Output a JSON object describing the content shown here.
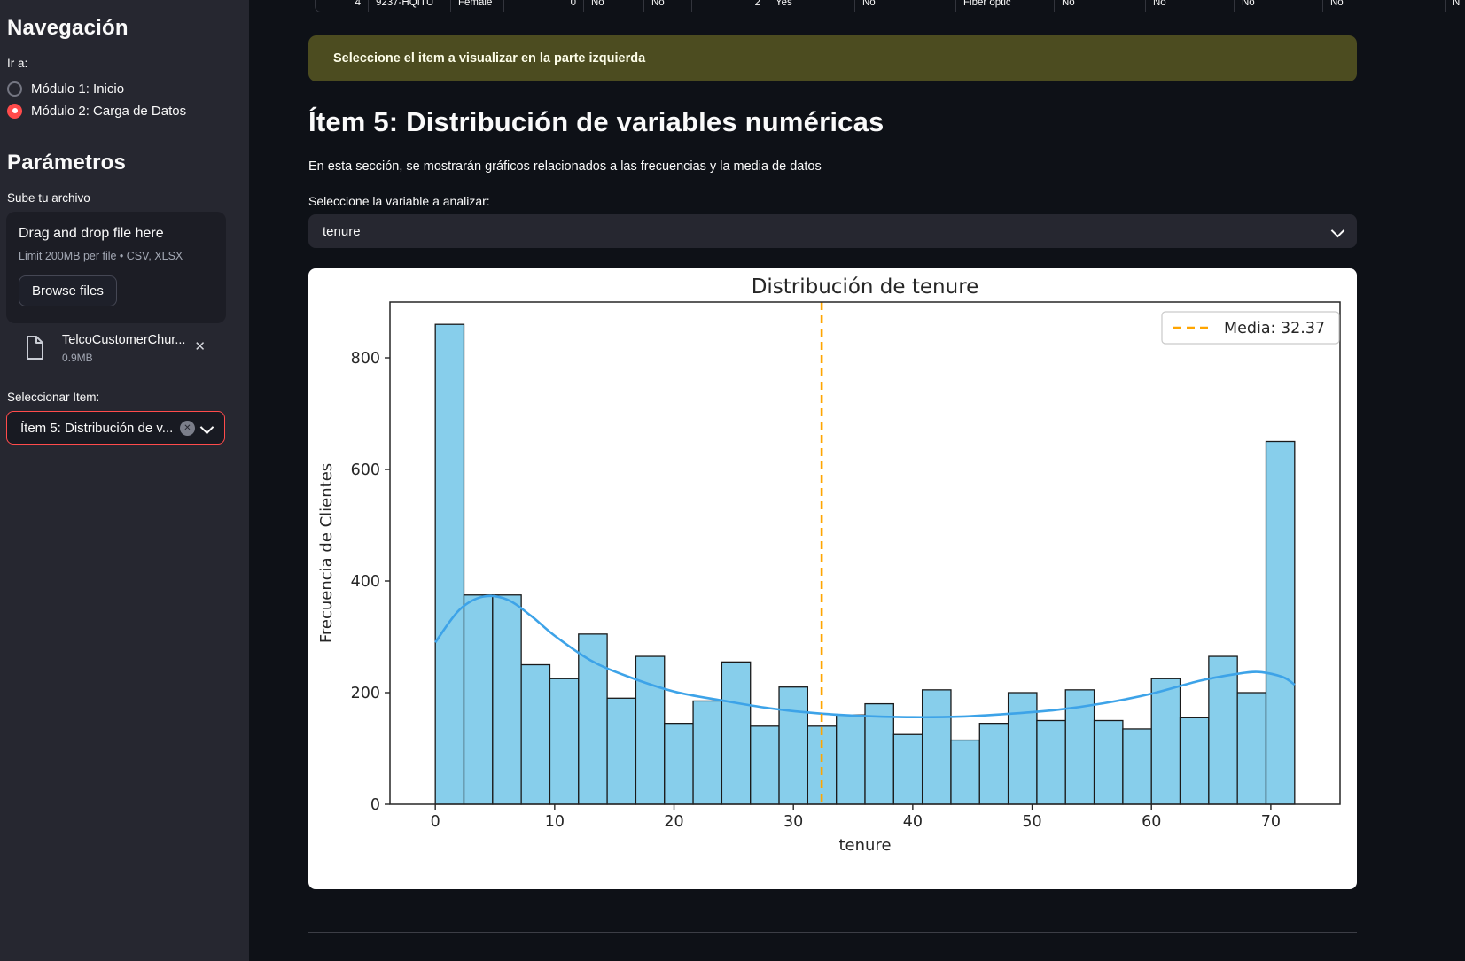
{
  "colors": {
    "bg": "#0e1117",
    "sidebar_bg": "#262730",
    "accent": "#ff4b4b",
    "text": "#fafafa",
    "muted": "#a3a8b4",
    "banner_bg": "#4c4c20",
    "banner_text": "#fdfde8"
  },
  "table_fragment": {
    "cells": [
      "4",
      "9237-HQITU",
      "Female",
      "0",
      "No",
      "No",
      "2",
      "Yes",
      "No",
      "Fiber optic",
      "No",
      "No",
      "No",
      "No",
      "N"
    ]
  },
  "banner": {
    "text": "Seleccione el item a visualizar en la parte izquierda"
  },
  "sidebar": {
    "nav_title": "Navegación",
    "goto_label": "Ir a:",
    "radios": [
      {
        "label": "Módulo 1: Inicio",
        "selected": false
      },
      {
        "label": "Módulo 2: Carga de Datos",
        "selected": true
      }
    ],
    "params_title": "Parámetros",
    "upload_label": "Sube tu archivo",
    "uploader": {
      "drag_text": "Drag and drop file here",
      "limit_text": "Limit 200MB per file • CSV, XLSX",
      "browse_label": "Browse files"
    },
    "uploaded_file": {
      "name": "TelcoCustomerChur...",
      "size": "0.9MB",
      "remove_icon": "✕"
    },
    "select_item_label": "Seleccionar Item:",
    "item_select_value": "Ítem 5: Distribución de v...",
    "clear_icon": "✕"
  },
  "main": {
    "heading": "Ítem 5: Distribución de variables numéricas",
    "description": "En esta sección, se mostrarán gráficos relacionados a las frecuencias y la media de datos",
    "variable_label": "Seleccione la variable a analizar:",
    "variable_value": "tenure"
  },
  "chart_data": {
    "type": "bar",
    "subtype": "histogram_with_kde",
    "title": "Distribución de tenure",
    "xlabel": "tenure",
    "ylabel": "Frecuencia de Clientes",
    "bin_start": 0,
    "bin_width": 2.4,
    "counts": [
      860,
      375,
      375,
      250,
      225,
      305,
      190,
      265,
      145,
      185,
      255,
      140,
      210,
      140,
      160,
      180,
      125,
      205,
      115,
      145,
      200,
      150,
      205,
      150,
      135,
      225,
      155,
      265,
      200,
      650
    ],
    "kde_points": [
      [
        0,
        290
      ],
      [
        2,
        348
      ],
      [
        4,
        372
      ],
      [
        6,
        367
      ],
      [
        8,
        338
      ],
      [
        10,
        302
      ],
      [
        13,
        258
      ],
      [
        16,
        230
      ],
      [
        20,
        202
      ],
      [
        24,
        186
      ],
      [
        28,
        172
      ],
      [
        32,
        163
      ],
      [
        36,
        158
      ],
      [
        40,
        156
      ],
      [
        44,
        157
      ],
      [
        48,
        162
      ],
      [
        52,
        169
      ],
      [
        56,
        181
      ],
      [
        60,
        198
      ],
      [
        64,
        221
      ],
      [
        67,
        233
      ],
      [
        69,
        237
      ],
      [
        71,
        228
      ],
      [
        72,
        214
      ]
    ],
    "mean": 32.37,
    "mean_label": "Media: 32.37",
    "xticks": [
      0,
      10,
      20,
      30,
      40,
      50,
      60,
      70
    ],
    "yticks": [
      0,
      200,
      400,
      600,
      800
    ],
    "xlim": [
      -3.8,
      75.8
    ],
    "ylim": [
      0,
      900
    ],
    "grid": false,
    "legend_position": "upper right",
    "colors": {
      "bar_fill": "#87CEEB",
      "bar_edge": "#1a1a1a",
      "kde_line": "#3DA3E8",
      "mean_line": "#FFA500",
      "plot_bg": "#ffffff",
      "text": "#262626"
    }
  }
}
